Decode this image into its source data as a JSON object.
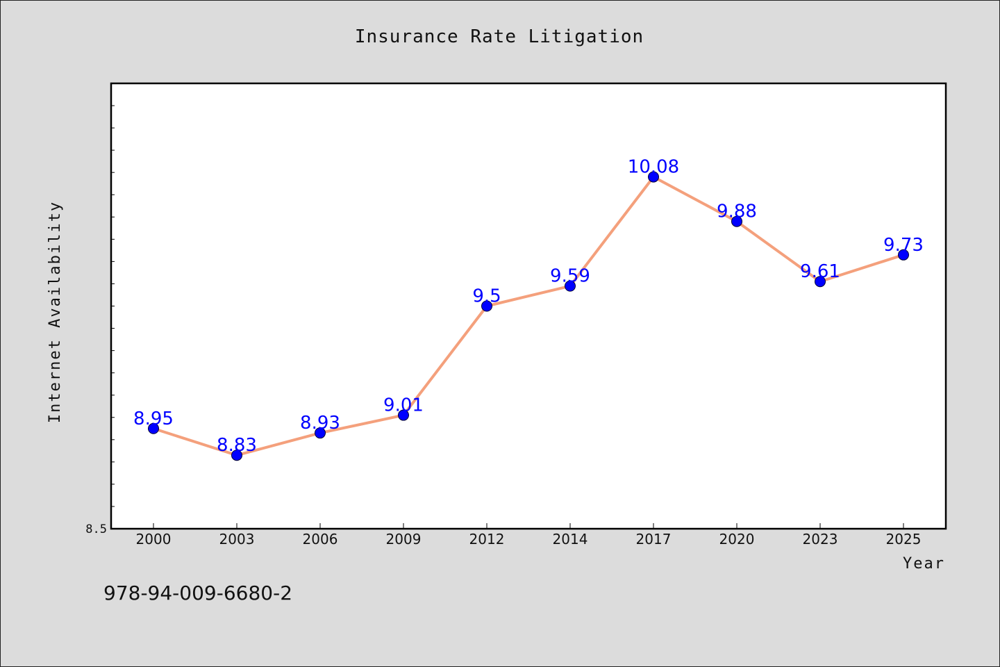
{
  "chart_data": {
    "type": "line",
    "title": "Insurance Rate Litigation",
    "xlabel": "Year",
    "ylabel": "Internet Availability",
    "categories": [
      "2000",
      "2003",
      "2006",
      "2009",
      "2012",
      "2014",
      "2017",
      "2020",
      "2023",
      "2025"
    ],
    "series": [
      {
        "values": [
          8.95,
          8.83,
          8.93,
          9.01,
          9.5,
          9.59,
          10.08,
          9.88,
          9.61,
          9.73
        ]
      }
    ],
    "data_labels": [
      "8.95",
      "8.83",
      "8.93",
      "9.01",
      "9.5",
      "9.59",
      "10.08",
      "9.88",
      "9.61",
      "9.73"
    ],
    "ylim": [
      8.5,
      10.5
    ],
    "ytick_labels": [
      "8.5"
    ],
    "grid": false,
    "line_color": "#f4a07c",
    "marker_color": "#0000ff",
    "label_color": "#0000ff"
  },
  "footer": {
    "isbn": "978-94-009-6680-2"
  }
}
